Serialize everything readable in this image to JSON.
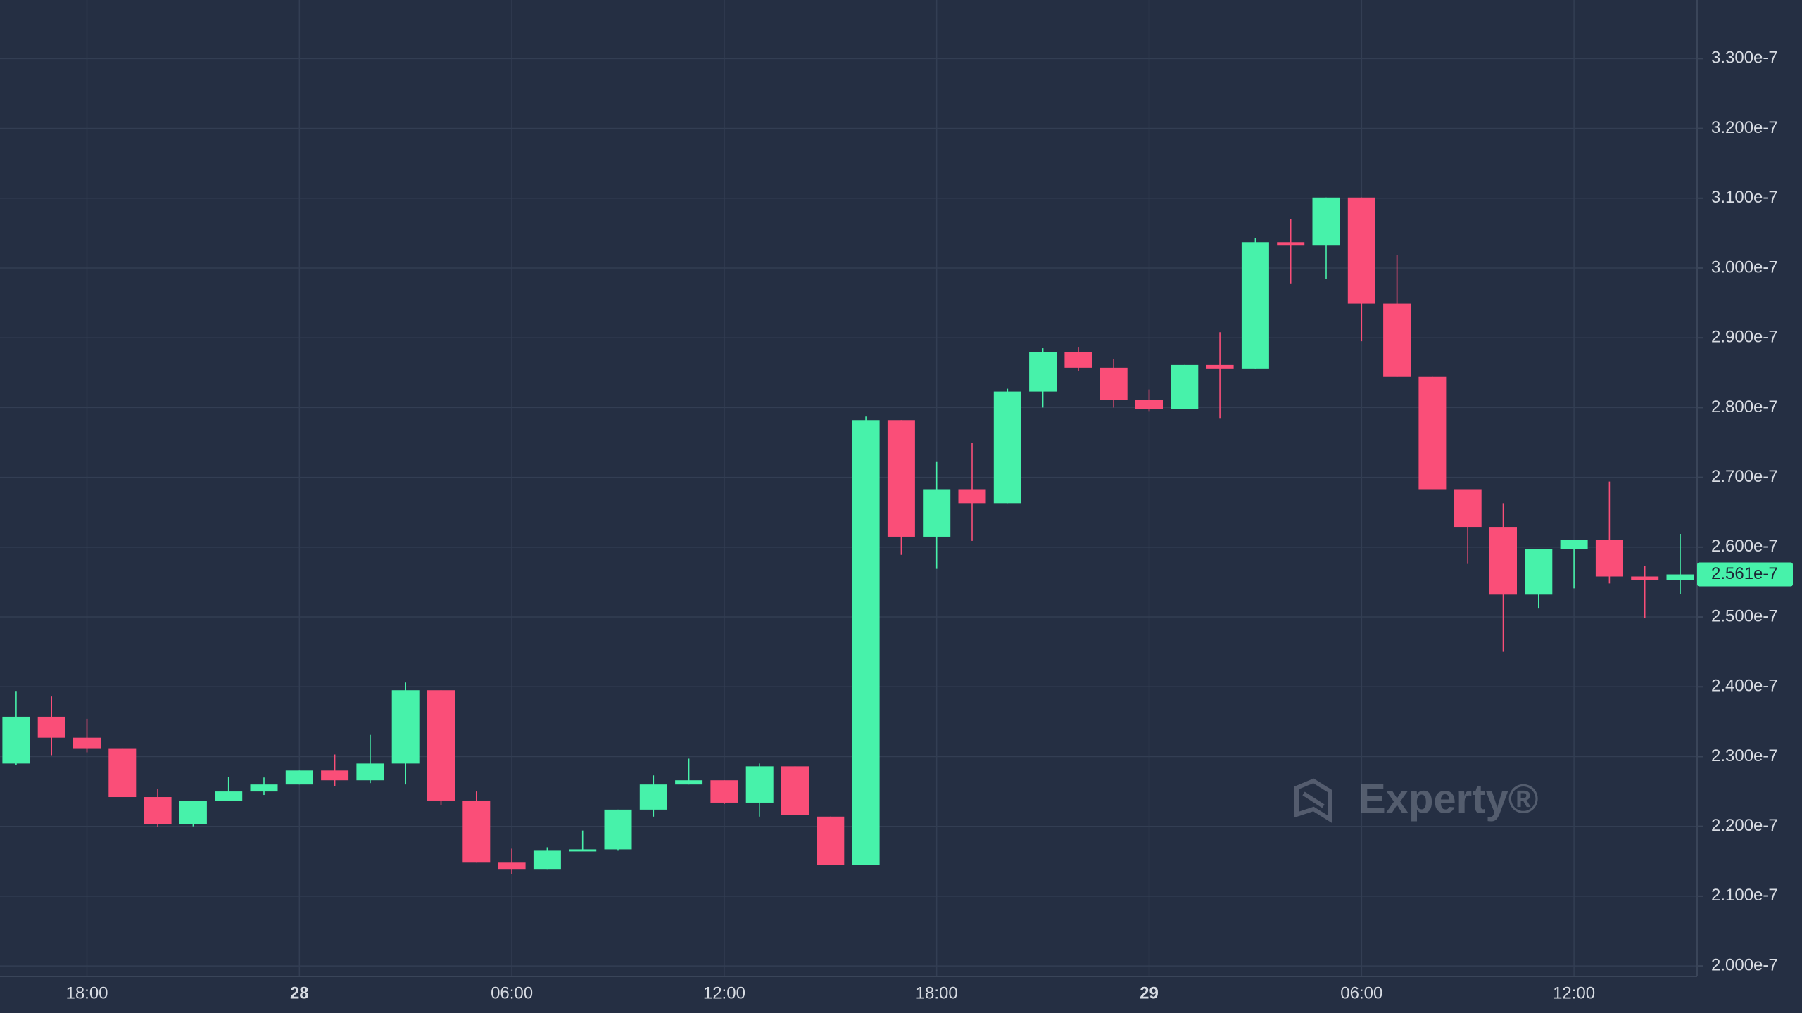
{
  "chart_data": {
    "type": "candlestick",
    "categories": [
      null,
      null,
      "18:00",
      null,
      null,
      null,
      null,
      null,
      "28",
      null,
      null,
      null,
      null,
      null,
      "06:00",
      null,
      null,
      null,
      null,
      null,
      "12:00",
      null,
      null,
      null,
      null,
      null,
      "18:00",
      null,
      null,
      null,
      null,
      null,
      "29",
      null,
      null,
      null,
      null,
      null,
      "06:00",
      null,
      null,
      null,
      null,
      null,
      "12:00",
      null,
      null,
      null
    ],
    "open": [
      2.29e-07,
      2.357e-07,
      2.327e-07,
      2.311e-07,
      2.242e-07,
      2.203e-07,
      2.236e-07,
      2.25e-07,
      2.26e-07,
      2.28e-07,
      2.266e-07,
      2.29e-07,
      2.395e-07,
      2.237e-07,
      2.148e-07,
      2.138e-07,
      2.165e-07,
      2.167e-07,
      2.224e-07,
      2.26e-07,
      2.266e-07,
      2.234e-07,
      2.286e-07,
      2.214e-07,
      2.145e-07,
      2.782e-07,
      2.615e-07,
      2.683e-07,
      2.663e-07,
      2.823e-07,
      2.88e-07,
      2.857e-07,
      2.811e-07,
      2.798e-07,
      2.861e-07,
      2.856e-07,
      3.037e-07,
      3.033e-07,
      3.101e-07,
      2.949e-07,
      2.844e-07,
      2.683e-07,
      2.629e-07,
      2.532e-07,
      2.597e-07,
      2.61e-07,
      2.558e-07,
      2.553e-07
    ],
    "high": [
      2.394e-07,
      2.386e-07,
      2.354e-07,
      2.311e-07,
      2.254e-07,
      2.236e-07,
      2.271e-07,
      2.27e-07,
      2.28e-07,
      2.303e-07,
      2.331e-07,
      2.406e-07,
      2.395e-07,
      2.25e-07,
      2.168e-07,
      2.17e-07,
      2.194e-07,
      2.224e-07,
      2.273e-07,
      2.297e-07,
      2.266e-07,
      2.29e-07,
      2.286e-07,
      2.214e-07,
      2.787e-07,
      2.782e-07,
      2.722e-07,
      2.749e-07,
      2.827e-07,
      2.885e-07,
      2.887e-07,
      2.869e-07,
      2.826e-07,
      2.861e-07,
      2.908e-07,
      3.043e-07,
      3.07e-07,
      3.101e-07,
      3.101e-07,
      3.019e-07,
      2.844e-07,
      2.683e-07,
      2.663e-07,
      2.597e-07,
      2.61e-07,
      2.694e-07,
      2.573e-07,
      2.619e-07
    ],
    "low": [
      2.288e-07,
      2.302e-07,
      2.306e-07,
      2.242e-07,
      2.199e-07,
      2.2e-07,
      2.236e-07,
      2.245e-07,
      2.26e-07,
      2.258e-07,
      2.262e-07,
      2.26e-07,
      2.23e-07,
      2.148e-07,
      2.132e-07,
      2.138e-07,
      2.165e-07,
      2.165e-07,
      2.214e-07,
      2.26e-07,
      2.232e-07,
      2.214e-07,
      2.216e-07,
      2.145e-07,
      2.145e-07,
      2.589e-07,
      2.569e-07,
      2.609e-07,
      2.663e-07,
      2.8e-07,
      2.852e-07,
      2.8e-07,
      2.795e-07,
      2.798e-07,
      2.785e-07,
      2.856e-07,
      2.977e-07,
      2.984e-07,
      2.895e-07,
      2.844e-07,
      2.683e-07,
      2.576e-07,
      2.45e-07,
      2.513e-07,
      2.541e-07,
      2.548e-07,
      2.499e-07,
      2.533e-07
    ],
    "close": [
      2.357e-07,
      2.327e-07,
      2.311e-07,
      2.242e-07,
      2.203e-07,
      2.236e-07,
      2.25e-07,
      2.26e-07,
      2.28e-07,
      2.266e-07,
      2.29e-07,
      2.395e-07,
      2.237e-07,
      2.148e-07,
      2.138e-07,
      2.165e-07,
      2.167e-07,
      2.224e-07,
      2.26e-07,
      2.266e-07,
      2.234e-07,
      2.286e-07,
      2.216e-07,
      2.145e-07,
      2.782e-07,
      2.615e-07,
      2.683e-07,
      2.663e-07,
      2.823e-07,
      2.88e-07,
      2.857e-07,
      2.811e-07,
      2.798e-07,
      2.861e-07,
      2.856e-07,
      3.037e-07,
      3.033e-07,
      3.101e-07,
      2.949e-07,
      2.844e-07,
      2.683e-07,
      2.629e-07,
      2.532e-07,
      2.597e-07,
      2.61e-07,
      2.558e-07,
      2.553e-07,
      2.561e-07
    ],
    "up_color": "#47f2aa",
    "down_color": "#fa4e78",
    "ylim": [
      1.985e-07,
      3.384e-07
    ],
    "yticks": [
      {
        "value": 2e-07,
        "label": "2.000e-7"
      },
      {
        "value": 2.1e-07,
        "label": "2.100e-7"
      },
      {
        "value": 2.2e-07,
        "label": "2.200e-7"
      },
      {
        "value": 2.3e-07,
        "label": "2.300e-7"
      },
      {
        "value": 2.4e-07,
        "label": "2.400e-7"
      },
      {
        "value": 2.5e-07,
        "label": "2.500e-7"
      },
      {
        "value": 2.6e-07,
        "label": "2.600e-7"
      },
      {
        "value": 2.7e-07,
        "label": "2.700e-7"
      },
      {
        "value": 2.8e-07,
        "label": "2.800e-7"
      },
      {
        "value": 2.9e-07,
        "label": "2.900e-7"
      },
      {
        "value": 3e-07,
        "label": "3.000e-7"
      },
      {
        "value": 3.1e-07,
        "label": "3.100e-7"
      },
      {
        "value": 3.2e-07,
        "label": "3.200e-7"
      },
      {
        "value": 3.3e-07,
        "label": "3.300e-7"
      }
    ],
    "last_price": {
      "value": 2.561e-07,
      "label": "2.561e-7"
    },
    "grid": true,
    "watermark": "Experty®"
  }
}
